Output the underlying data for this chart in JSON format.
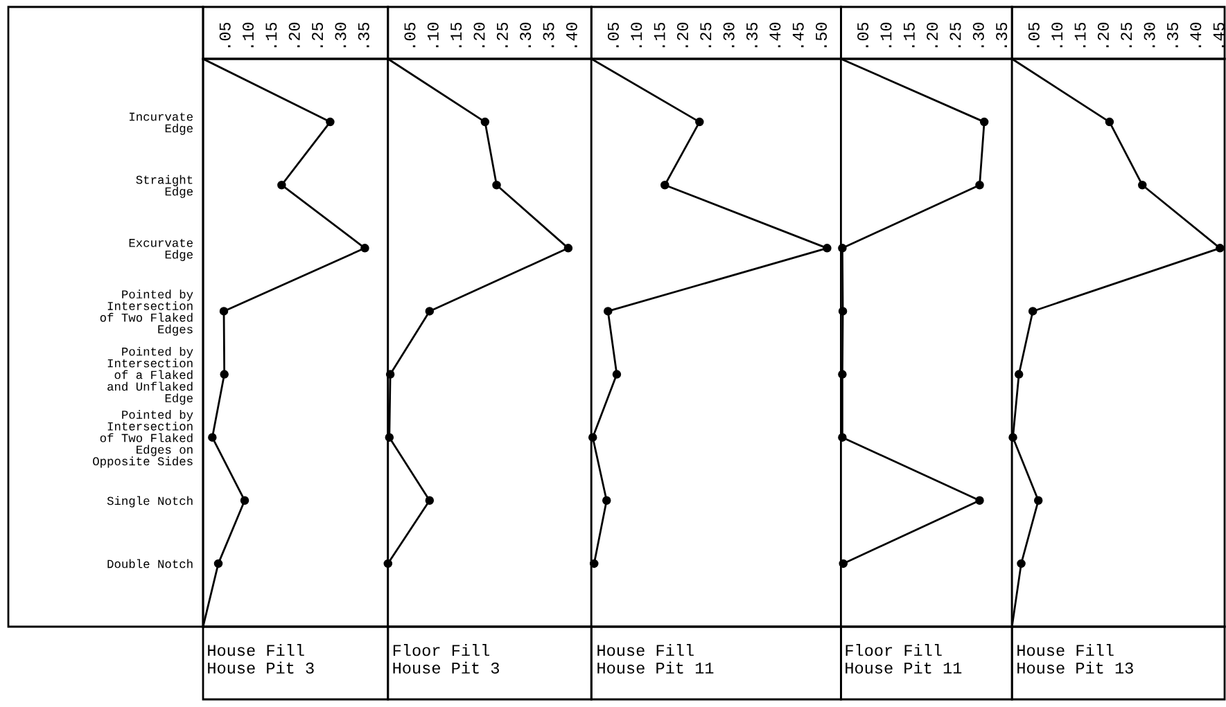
{
  "chart_data": [
    {
      "type": "line",
      "orientation": "horizontal",
      "color": "#000000",
      "marker": "circle",
      "line_style": "solid",
      "grid": false,
      "xlabel": "House Fill\nHouse Pit 3",
      "categories": [
        null,
        "Incurvate\nEdge",
        "Straight\nEdge",
        "Excurvate\nEdge",
        "Pointed by\nIntersection\nof Two Flaked\nEdges",
        "Pointed by\nIntersection\nof a Flaked\nand Unflaked\nEdge",
        "Pointed by\nIntersection\nof Two Flaked\nEdges on\nOpposite Sides",
        "Single Notch",
        "Double Notch",
        null
      ],
      "values": [
        0,
        0.275,
        0.17,
        0.35,
        0.045,
        0.046,
        0.02,
        0.09,
        0.033,
        0
      ],
      "xlim": [
        0,
        0.4
      ],
      "xticks": [
        {
          "value": 0.05,
          "label": ".05"
        },
        {
          "value": 0.1,
          "label": ".10"
        },
        {
          "value": 0.15,
          "label": ".15"
        },
        {
          "value": 0.2,
          "label": ".20"
        },
        {
          "value": 0.25,
          "label": ".25"
        },
        {
          "value": 0.3,
          "label": ".30"
        },
        {
          "value": 0.35,
          "label": ".35"
        }
      ]
    },
    {
      "type": "line",
      "orientation": "horizontal",
      "color": "#000000",
      "marker": "circle",
      "line_style": "solid",
      "grid": false,
      "xlabel": "Floor Fill\nHouse Pit 3",
      "tick_labels": "x",
      "values": [
        0,
        0.21,
        0.235,
        0.39,
        0.09,
        0.005,
        0.003,
        0.09,
        0.0,
        null
      ],
      "xlim": [
        0,
        0.44
      ],
      "xticks": [
        {
          "value": 0.05,
          "label": ".05"
        },
        {
          "value": 0.1,
          "label": ".10"
        },
        {
          "value": 0.15,
          "label": ".15"
        },
        {
          "value": 0.2,
          "label": ".20"
        },
        {
          "value": 0.25,
          "label": ".25"
        },
        {
          "value": 0.3,
          "label": ".30"
        },
        {
          "value": 0.35,
          "label": ".35"
        },
        {
          "value": 0.4,
          "label": ".40"
        }
      ]
    },
    {
      "type": "line",
      "orientation": "horizontal",
      "color": "#000000",
      "marker": "circle",
      "line_style": "solid",
      "grid": false,
      "xlabel": "House Fill\nHouse Pit 11",
      "tick_labels": "x",
      "values": [
        0,
        0.234,
        0.159,
        0.51,
        0.036,
        0.055,
        0.003,
        0.033,
        0.006,
        null
      ],
      "xlim": [
        0,
        0.54
      ],
      "xticks": [
        {
          "value": 0.05,
          "label": ".05"
        },
        {
          "value": 0.1,
          "label": ".10"
        },
        {
          "value": 0.15,
          "label": ".15"
        },
        {
          "value": 0.2,
          "label": ".20"
        },
        {
          "value": 0.25,
          "label": ".25"
        },
        {
          "value": 0.3,
          "label": ".30"
        },
        {
          "value": 0.35,
          "label": ".35"
        },
        {
          "value": 0.4,
          "label": ".40"
        },
        {
          "value": 0.45,
          "label": ".45"
        },
        {
          "value": 0.5,
          "label": ".50"
        }
      ]
    },
    {
      "type": "line",
      "orientation": "horizontal",
      "color": "#000000",
      "marker": "circle",
      "line_style": "solid",
      "grid": false,
      "xlabel": "Floor Fill\nHouse Pit 11",
      "tick_labels": "x",
      "values": [
        0,
        0.31,
        0.3,
        0.003,
        0.004,
        0.003,
        0.003,
        0.3,
        0.005,
        null
      ],
      "xlim": [
        0,
        0.37
      ],
      "xticks": [
        {
          "value": 0.05,
          "label": ".05"
        },
        {
          "value": 0.1,
          "label": ".10"
        },
        {
          "value": 0.15,
          "label": ".15"
        },
        {
          "value": 0.2,
          "label": ".20"
        },
        {
          "value": 0.25,
          "label": ".25"
        },
        {
          "value": 0.3,
          "label": ".30"
        },
        {
          "value": 0.35,
          "label": ".35"
        }
      ]
    },
    {
      "type": "line",
      "orientation": "horizontal",
      "color": "#000000",
      "marker": "circle",
      "line_style": "solid",
      "grid": false,
      "xlabel": "House Fill\nHouse Pit 13",
      "tick_labels": "x",
      "values": [
        0,
        0.211,
        0.282,
        0.45,
        0.045,
        0.015,
        0.002,
        0.057,
        0.02,
        0
      ],
      "xlim": [
        0,
        0.46
      ],
      "xticks": [
        {
          "value": 0.05,
          "label": ".05"
        },
        {
          "value": 0.1,
          "label": ".10"
        },
        {
          "value": 0.15,
          "label": ".15"
        },
        {
          "value": 0.2,
          "label": ".20"
        },
        {
          "value": 0.25,
          "label": ".25"
        },
        {
          "value": 0.3,
          "label": ".30"
        },
        {
          "value": 0.35,
          "label": ".35"
        },
        {
          "value": 0.4,
          "label": ".40"
        },
        {
          "value": 0.45,
          "label": ".45"
        }
      ]
    }
  ]
}
